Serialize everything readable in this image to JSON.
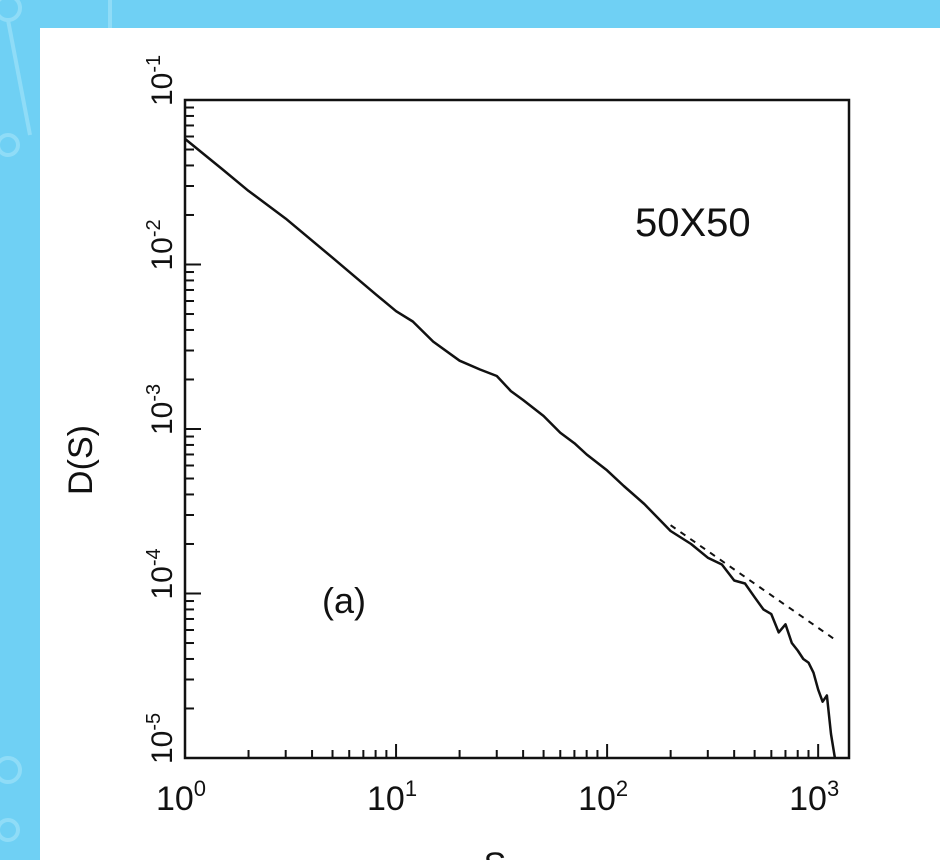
{
  "chart_data": {
    "type": "line",
    "scale": {
      "x": "log",
      "y": "log"
    },
    "xlabel": "S",
    "ylabel": "D(S)",
    "xlim": [
      1,
      1400
    ],
    "ylim": [
      1e-05,
      0.1
    ],
    "grid": false,
    "annotations": [
      {
        "text": "50X50",
        "position": "top-right"
      },
      {
        "text": "(a)",
        "position": "bottom-left"
      }
    ],
    "x_ticks": [
      {
        "value": 1,
        "base": "10",
        "exp": "0"
      },
      {
        "value": 10,
        "base": "10",
        "exp": "1"
      },
      {
        "value": 100,
        "base": "10",
        "exp": "2"
      },
      {
        "value": 1000,
        "base": "10",
        "exp": "3"
      }
    ],
    "y_ticks": [
      {
        "value": 1e-05,
        "base": "10",
        "exp": "-5"
      },
      {
        "value": 0.0001,
        "base": "10",
        "exp": "-4"
      },
      {
        "value": 0.001,
        "base": "10",
        "exp": "-3"
      },
      {
        "value": 0.01,
        "base": "10",
        "exp": "-2"
      },
      {
        "value": 0.1,
        "base": "10",
        "exp": "-1"
      }
    ],
    "series": [
      {
        "style": "solid",
        "x": [
          1,
          1.5,
          2,
          3,
          5,
          8,
          10,
          12,
          15,
          20,
          25,
          30,
          35,
          40,
          50,
          60,
          70,
          80,
          100,
          120,
          150,
          200,
          250,
          300,
          350,
          400,
          450,
          500,
          550,
          600,
          650,
          700,
          750,
          800,
          850,
          900,
          950,
          1000,
          1050,
          1100,
          1150,
          1200
        ],
        "y": [
          0.058,
          0.038,
          0.028,
          0.019,
          0.011,
          0.0066,
          0.0052,
          0.0045,
          0.0034,
          0.0026,
          0.0023,
          0.0021,
          0.0017,
          0.0015,
          0.0012,
          0.00095,
          0.00082,
          0.0007,
          0.00056,
          0.00045,
          0.00035,
          0.00024,
          0.0002,
          0.000165,
          0.00015,
          0.00012,
          0.000115,
          9.5e-05,
          8e-05,
          7.5e-05,
          5.8e-05,
          6.5e-05,
          5e-05,
          4.5e-05,
          4e-05,
          3.8e-05,
          3.3e-05,
          2.6e-05,
          2.2e-05,
          2.4e-05,
          1.4e-05,
          1e-05
        ]
      },
      {
        "style": "dashed",
        "x": [
          200,
          1200
        ],
        "y": [
          0.00026,
          5.25e-05
        ]
      }
    ]
  }
}
